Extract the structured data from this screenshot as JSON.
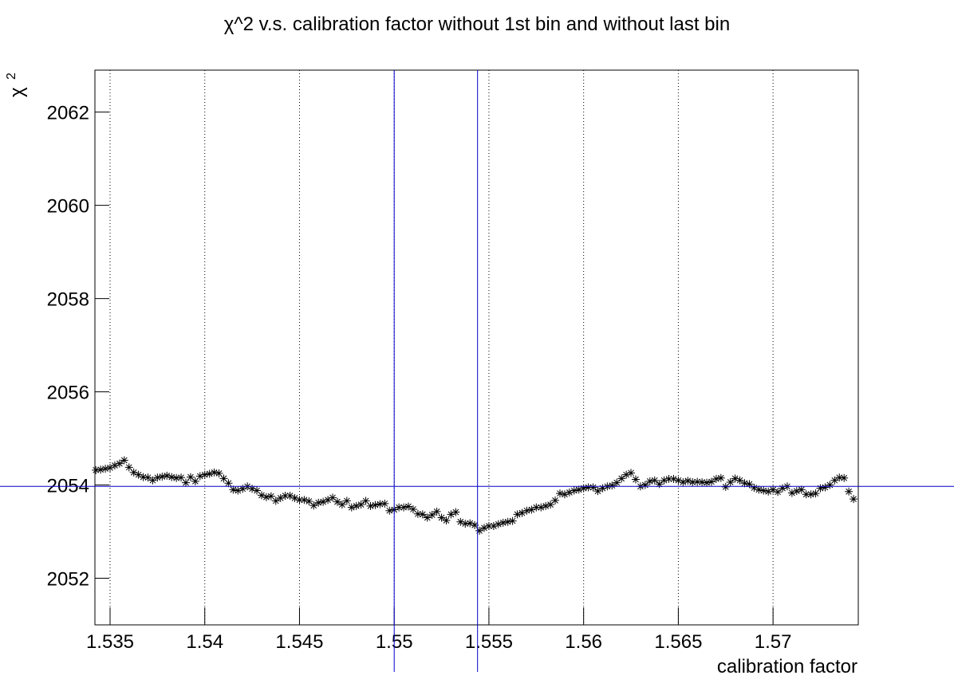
{
  "chart_data": {
    "type": "scatter",
    "title": "χ^2 v.s. calibration factor without 1st bin and without last bin",
    "xlabel": "calibration factor",
    "ylabel": {
      "symbol": "χ",
      "superscript": "2"
    },
    "xlim": [
      1.5342,
      1.5745
    ],
    "ylim": [
      2051,
      2062.9
    ],
    "xticks": [
      1.535,
      1.54,
      1.545,
      1.55,
      1.555,
      1.56,
      1.565,
      1.57
    ],
    "yticks": [
      2052,
      2054,
      2056,
      2058,
      2060,
      2062
    ],
    "grid_x": true,
    "color": "#000000",
    "reference_lines": {
      "x": [
        1.55,
        1.5544
      ],
      "y": 2053.97,
      "color": "#0000cc"
    },
    "x": [
      1.53425,
      1.5345,
      1.53475,
      1.535,
      1.53525,
      1.5355,
      1.53575,
      1.536,
      1.53625,
      1.5365,
      1.53675,
      1.537,
      1.53725,
      1.5375,
      1.53775,
      1.538,
      1.53825,
      1.5385,
      1.53875,
      1.539,
      1.53925,
      1.5395,
      1.53975,
      1.54,
      1.54025,
      1.5405,
      1.54075,
      1.541,
      1.54125,
      1.5415,
      1.54175,
      1.542,
      1.54225,
      1.5425,
      1.54275,
      1.543,
      1.54325,
      1.5435,
      1.54375,
      1.544,
      1.54425,
      1.5445,
      1.54475,
      1.545,
      1.54525,
      1.5455,
      1.54575,
      1.546,
      1.54625,
      1.5465,
      1.54675,
      1.547,
      1.54725,
      1.5475,
      1.54775,
      1.548,
      1.54825,
      1.5485,
      1.54875,
      1.549,
      1.54925,
      1.5495,
      1.54975,
      1.55,
      1.55025,
      1.5505,
      1.55075,
      1.551,
      1.55125,
      1.5515,
      1.55175,
      1.552,
      1.55225,
      1.5525,
      1.55275,
      1.553,
      1.55325,
      1.5535,
      1.55375,
      1.554,
      1.55425,
      1.5545,
      1.55475,
      1.555,
      1.55525,
      1.5555,
      1.55575,
      1.556,
      1.55625,
      1.5565,
      1.55675,
      1.557,
      1.55725,
      1.5575,
      1.55775,
      1.558,
      1.55825,
      1.5585,
      1.55875,
      1.559,
      1.55925,
      1.5595,
      1.55975,
      1.56,
      1.56025,
      1.5605,
      1.56075,
      1.561,
      1.56125,
      1.5615,
      1.56175,
      1.562,
      1.56225,
      1.5625,
      1.56275,
      1.563,
      1.56325,
      1.5635,
      1.56375,
      1.564,
      1.56425,
      1.5645,
      1.56475,
      1.565,
      1.56525,
      1.5655,
      1.56575,
      1.566,
      1.56625,
      1.5665,
      1.56675,
      1.567,
      1.56725,
      1.5675,
      1.56775,
      1.568,
      1.56825,
      1.5685,
      1.56875,
      1.569,
      1.56925,
      1.5695,
      1.56975,
      1.57,
      1.57025,
      1.5705,
      1.57075,
      1.571,
      1.57125,
      1.5715,
      1.57175,
      1.572,
      1.57225,
      1.5725,
      1.57275,
      1.573,
      1.57325,
      1.5735,
      1.57375,
      1.574,
      1.57425
    ],
    "values": [
      2054.32,
      2054.33,
      2054.35,
      2054.37,
      2054.42,
      2054.46,
      2054.53,
      2054.38,
      2054.27,
      2054.22,
      2054.17,
      2054.16,
      2054.1,
      2054.16,
      2054.18,
      2054.2,
      2054.17,
      2054.15,
      2054.16,
      2054.05,
      2054.17,
      2054.08,
      2054.19,
      2054.22,
      2054.24,
      2054.27,
      2054.25,
      2054.14,
      2054.04,
      2053.9,
      2053.88,
      2053.92,
      2053.97,
      2053.92,
      2053.88,
      2053.78,
      2053.74,
      2053.76,
      2053.66,
      2053.72,
      2053.77,
      2053.77,
      2053.72,
      2053.68,
      2053.68,
      2053.65,
      2053.56,
      2053.62,
      2053.64,
      2053.68,
      2053.73,
      2053.64,
      2053.58,
      2053.66,
      2053.52,
      2053.55,
      2053.58,
      2053.66,
      2053.55,
      2053.57,
      2053.59,
      2053.6,
      2053.45,
      2053.47,
      2053.52,
      2053.52,
      2053.54,
      2053.48,
      2053.38,
      2053.37,
      2053.3,
      2053.36,
      2053.43,
      2053.3,
      2053.24,
      2053.37,
      2053.42,
      2053.21,
      2053.17,
      2053.18,
      2053.14,
      2053.02,
      2053.08,
      2053.12,
      2053.12,
      2053.16,
      2053.19,
      2053.21,
      2053.23,
      2053.37,
      2053.4,
      2053.45,
      2053.47,
      2053.52,
      2053.52,
      2053.55,
      2053.58,
      2053.67,
      2053.82,
      2053.8,
      2053.84,
      2053.88,
      2053.9,
      2053.93,
      2053.95,
      2053.95,
      2053.87,
      2053.93,
      2053.97,
      2053.99,
      2054.05,
      2054.14,
      2054.22,
      2054.26,
      2054.12,
      2053.97,
      2054.0,
      2054.08,
      2054.1,
      2054.02,
      2054.1,
      2054.13,
      2054.13,
      2054.1,
      2054.06,
      2054.09,
      2054.06,
      2054.07,
      2054.06,
      2054.05,
      2054.07,
      2054.13,
      2054.15,
      2053.96,
      2054.06,
      2054.14,
      2054.1,
      2054.04,
      2054.02,
      2053.94,
      2053.9,
      2053.88,
      2053.86,
      2053.9,
      2053.85,
      2053.93,
      2053.97,
      2053.83,
      2053.87,
      2053.9,
      2053.8,
      2053.8,
      2053.82,
      2053.93,
      2053.95,
      2054.0,
      2054.1,
      2054.16,
      2054.15,
      2053.86,
      2053.7
    ]
  }
}
